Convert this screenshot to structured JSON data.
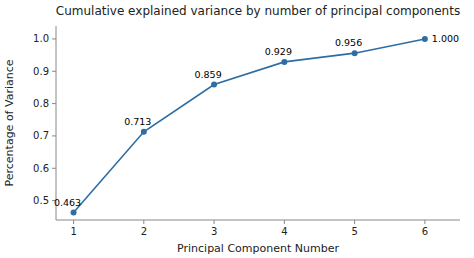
{
  "chart_data": {
    "type": "line",
    "title": "Cumulative explained variance by number of principal components",
    "x_label": "Principal Component Number",
    "y_label": "Percentage of Variance",
    "x": [
      1,
      2,
      3,
      4,
      5,
      6
    ],
    "values": [
      0.463,
      0.713,
      0.859,
      0.929,
      0.956,
      1.0
    ],
    "value_labels": [
      "0.463",
      "0.713",
      "0.859",
      "0.929",
      "0.956",
      "1.000"
    ],
    "data_labels": true,
    "color": "#2e6da4",
    "marker": "circle",
    "grid": false,
    "xlim": [
      0.75,
      6.5
    ],
    "ylim": [
      0.44,
      1.04
    ],
    "xticks": [
      1,
      2,
      3,
      4,
      5,
      6
    ],
    "yticks": [
      0.5,
      0.6,
      0.7,
      0.8,
      0.9,
      {
        "value": 1,
        "label": "1.0"
      }
    ]
  }
}
